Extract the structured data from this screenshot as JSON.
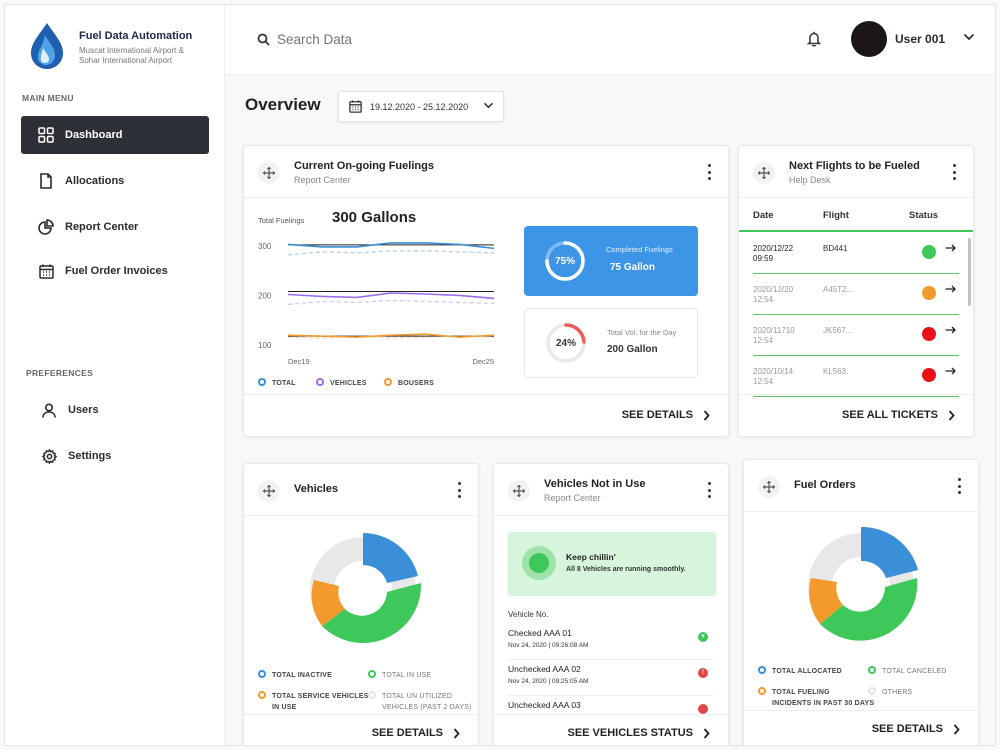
{
  "app": {
    "brand_title": "Fuel Data Automation",
    "brand_sub_line1": "Muscat International Airport &",
    "brand_sub_line2": "Sohar International Airport"
  },
  "sidebar": {
    "main_menu_label": "MAIN MENU",
    "items": [
      {
        "label": "Dashboard",
        "icon": "grid-icon",
        "active": true
      },
      {
        "label": "Allocations",
        "icon": "document-icon"
      },
      {
        "label": "Report Center",
        "icon": "pie-chart-icon"
      },
      {
        "label": "Fuel Order Invoices",
        "icon": "calendar-icon"
      }
    ],
    "preferences_label": "PREFERENCES",
    "pref_items": [
      {
        "label": "Users",
        "icon": "user-icon"
      },
      {
        "label": "Settings",
        "icon": "gear-icon"
      }
    ]
  },
  "topbar": {
    "search_placeholder": "Search Data",
    "username": "User 001"
  },
  "overview": {
    "title": "Overview",
    "date_range": "19.12.2020 - 25.12.2020"
  },
  "fuelings_card": {
    "title": "Current  On-going Fuelings",
    "subtitle": "Report Center",
    "total_label": "Total Fuelings",
    "total_value": "300 Gallons",
    "completed": {
      "percent": "75%",
      "label": "Completed Fuelings",
      "value": "75 Gallon",
      "fraction": 0.75
    },
    "total_vol": {
      "percent": "24%",
      "label": "Total Vol. for the Day",
      "value": "200 Gallon",
      "fraction": 0.24
    },
    "footer": "SEE DETAILS"
  },
  "chart_data": {
    "type": "line",
    "ylim": [
      90,
      320
    ],
    "yticks": [
      "300",
      "200",
      "100"
    ],
    "x_start_label": "Dec19",
    "x_end_label": "Dec25",
    "series": [
      {
        "name": "TOTAL",
        "color": "#3a8fd8",
        "values": [
          303,
          298,
          298,
          306,
          306,
          303,
          295
        ],
        "dashed": [
          282,
          288,
          286,
          290,
          290,
          288,
          286
        ]
      },
      {
        "name": "VEHICLES",
        "color": "#9b6cf0",
        "values": [
          202,
          198,
          196,
          205,
          203,
          200,
          194
        ],
        "dashed": [
          182,
          188,
          186,
          190,
          188,
          186,
          184
        ]
      },
      {
        "name": "BOUSERS",
        "color": "#f39a2d",
        "values": [
          120,
          118,
          116,
          120,
          122,
          116,
          120
        ],
        "dashed": [
          116,
          114,
          118,
          114,
          116,
          118,
          116
        ]
      }
    ]
  },
  "flights_card": {
    "title": "Next Flights to be Fueled",
    "subtitle": "Help Desk",
    "headers": [
      "Date",
      "Flight",
      "Status"
    ],
    "rows": [
      {
        "date": "2020/12/22",
        "time": "09:59",
        "flight": "BD441",
        "status_color": "#3ec85a",
        "faded": false
      },
      {
        "date": "2020/12/20",
        "time": "12:54",
        "flight": "A45T2...",
        "status_color": "#f39a2d",
        "faded": true
      },
      {
        "date": "2020/11710",
        "time": "12:54",
        "flight": "JK567...",
        "status_color": "#e8111a",
        "faded": true
      },
      {
        "date": "2020/10/14",
        "time": "12:54",
        "flight": "KL563.",
        "status_color": "#e8111a",
        "faded": true
      }
    ],
    "footer": "SEE ALL TICKETS"
  },
  "vehicles_card": {
    "title": "Vehicles",
    "legend": [
      {
        "label": "TOTAL INACTIVE",
        "color": "#3a8fd8"
      },
      {
        "label": "TOTAL IN USE",
        "color": "#3ec85a"
      },
      {
        "label": "TOTAL SERVICE VEHICLES",
        "label2": "IN USE",
        "color": "#f39a2d"
      },
      {
        "label": "TOTAL UN UTILIZED",
        "label2": "VEHICLES (PAST 2 DAYS)",
        "color": "#e4e4e4"
      }
    ],
    "footer": "SEE DETAILS"
  },
  "not_in_use_card": {
    "title": "Vehicles Not in Use",
    "subtitle": "Report Center",
    "banner_title": "Keep chillin'",
    "banner_text": "All 8 Vehicles are running smoothly.",
    "list_header": "Vehicle No.",
    "rows": [
      {
        "name": "Checked AAA 01",
        "time": "Nov 24, 2020 | 09:26:08 AM",
        "badge_color": "#3ec85a",
        "badge": "▾"
      },
      {
        "name": "Unchecked AAA 02",
        "time": "Nov 24, 2020 | 09:25:05 AM",
        "badge_color": "#e04848",
        "badge": "!"
      },
      {
        "name": "Unchecked AAA 03",
        "time": "",
        "badge_color": "#e04848",
        "badge": ""
      }
    ],
    "footer": "SEE VEHICLES STATUS"
  },
  "fuel_orders_card": {
    "title": "Fuel Orders",
    "legend": [
      {
        "label": "TOTAL ALLOCATED",
        "color": "#3a8fd8"
      },
      {
        "label": "TOTAL CANCELED",
        "color": "#3ec85a"
      },
      {
        "label": "TOTAL FUELING",
        "label2": "INCIDENTS IN PAST 30 DAYS",
        "color": "#f39a2d"
      },
      {
        "label": "OTHERS",
        "color": "#e4e4e4"
      }
    ],
    "footer": "SEE DETAILS"
  }
}
